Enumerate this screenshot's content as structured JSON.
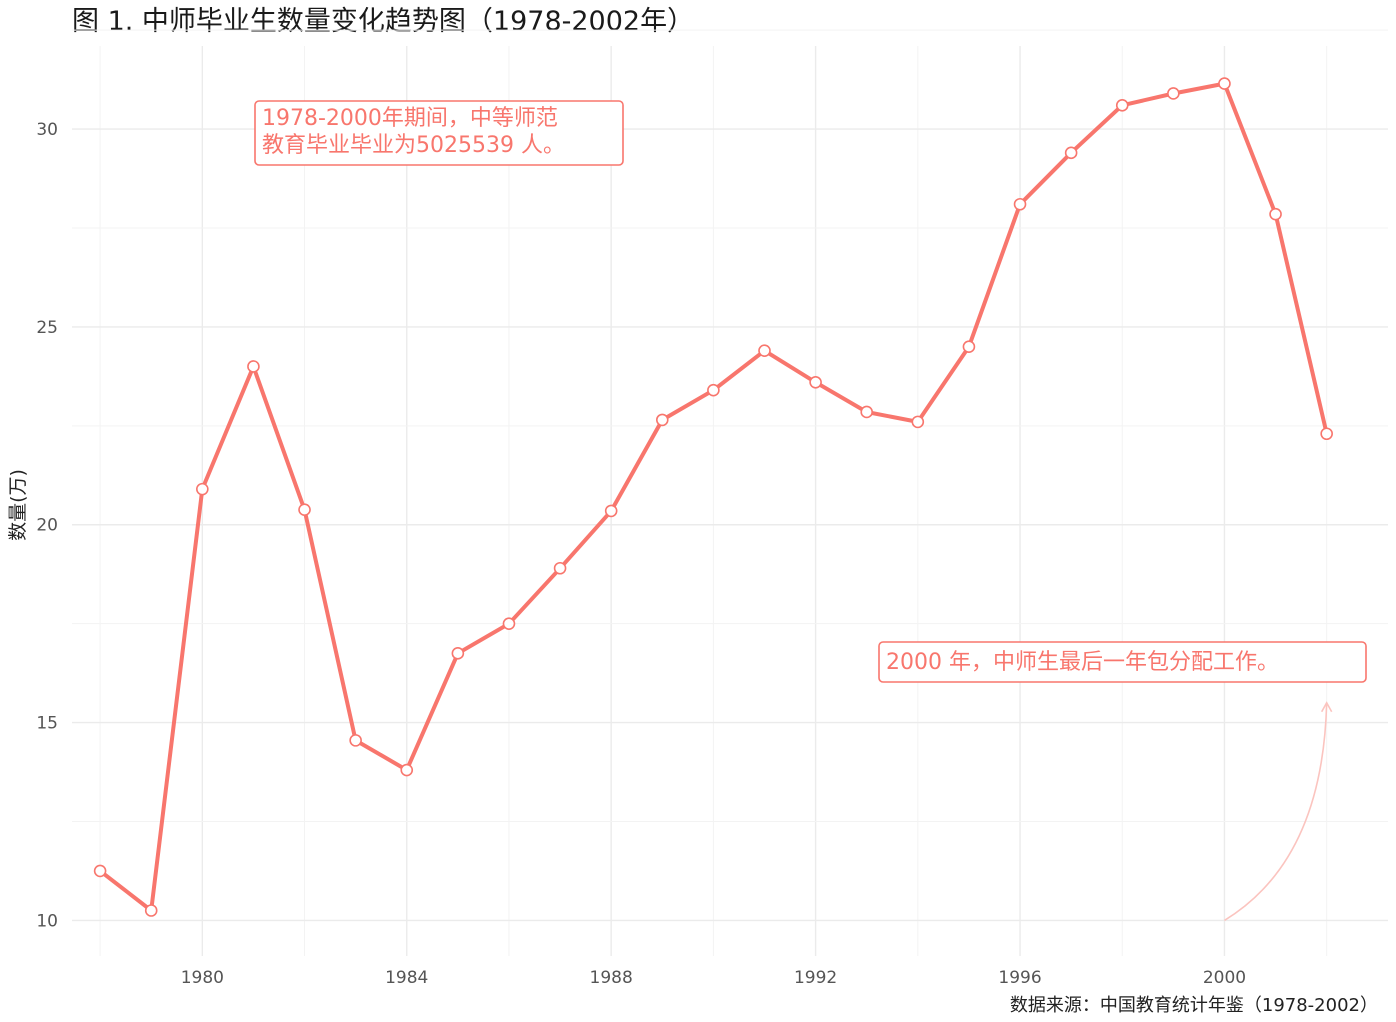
{
  "chart_data": {
    "type": "line",
    "title": "图 1. 中师毕业生数量变化趋势图（1978-2002年）",
    "ylabel": "数量(万)",
    "xlabel": "",
    "caption": "数据来源：中国教育统计年鉴（1978-2002）",
    "x_ticks": [
      1980,
      1984,
      1988,
      1992,
      1996,
      2000
    ],
    "y_ticks": [
      10,
      15,
      20,
      25,
      30
    ],
    "xlim": [
      1977.45,
      2003.2
    ],
    "ylim": [
      9.1,
      32.1
    ],
    "grid": true,
    "colors": {
      "line": "#F8766D",
      "point_fill": "#ffffff",
      "arrow": "#fbc4bf"
    },
    "series": [
      {
        "x": [
          1978,
          1979,
          1980,
          1981,
          1982,
          1983,
          1984,
          1985,
          1986,
          1987,
          1988,
          1989,
          1990,
          1991,
          1992,
          1993,
          1994,
          1995,
          1996,
          1997,
          1998,
          1999,
          2000,
          2001,
          2002
        ],
        "values": [
          11.25,
          10.25,
          20.9,
          24.0,
          20.38,
          14.55,
          13.8,
          16.75,
          17.5,
          18.9,
          20.35,
          22.65,
          23.4,
          24.4,
          23.6,
          22.85,
          22.6,
          24.5,
          28.1,
          29.4,
          30.6,
          30.9,
          31.15,
          27.85,
          22.3
        ]
      }
    ],
    "annotations": [
      {
        "lines": [
          "1978-2000年期间，中等师范",
          "教育毕业毕业为5025539 人。"
        ]
      },
      {
        "lines": [
          "2000 年，中师生最后一年包分配工作。"
        ],
        "arrow_from": [
          2000,
          10.0
        ],
        "arrow_to": [
          2002,
          15.5
        ]
      }
    ]
  }
}
